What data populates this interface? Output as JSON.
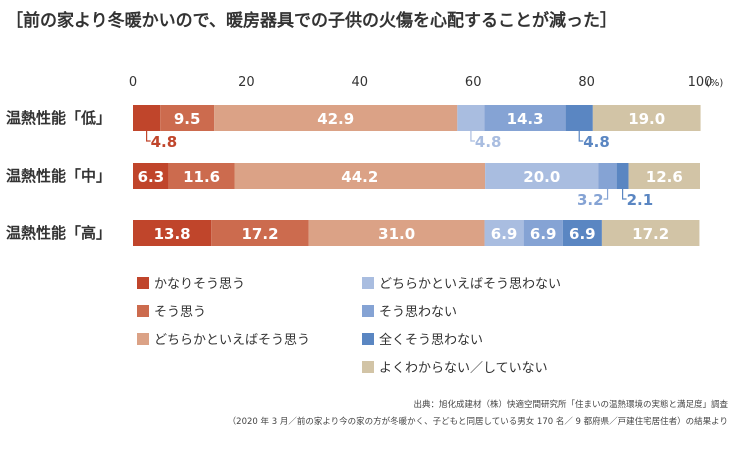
{
  "colors": {
    "strongly_agree": "#c0452b",
    "agree": "#cc6b4e",
    "somewhat_agree": "#dba286",
    "somewhat_disagree": "#a9bde0",
    "disagree": "#85a3d4",
    "strongly_disagree": "#5a86c2",
    "unknown": "#d2c4a6",
    "value_label_dark_bg": "#ffffff",
    "value_label_light_bg": "#ffffff",
    "callout_text_strongly_agree": "#c0452b",
    "callout_text_somewhat_disagree": "#a9bde0",
    "callout_text_disagree": "#85a3d4",
    "callout_text_strongly_disagree": "#5a86c2"
  },
  "chart_data": {
    "type": "bar",
    "orientation": "horizontal",
    "stacked": true,
    "title": "［前の家より冬暖かいので、暖房器具での子供の火傷を心配することが減った］",
    "xlim": [
      0,
      100
    ],
    "xticks": [
      "0",
      "20",
      "40",
      "60",
      "80",
      "100"
    ],
    "unit_label": "(%)",
    "categories": [
      "温熱性能「低」",
      "温熱性能「中」",
      "温熱性能「高」"
    ],
    "series": [
      {
        "name": "かなりそう思う",
        "color_key": "strongly_agree",
        "values": [
          4.8,
          6.3,
          13.8
        ],
        "labels": [
          "4.8",
          "6.3",
          "13.8"
        ]
      },
      {
        "name": "そう思う",
        "color_key": "agree",
        "values": [
          9.5,
          11.6,
          17.2
        ],
        "labels": [
          "9.5",
          "11.6",
          "17.2"
        ]
      },
      {
        "name": "どちらかといえばそう思う",
        "color_key": "somewhat_agree",
        "values": [
          42.9,
          44.2,
          31.0
        ],
        "labels": [
          "42.9",
          "44.2",
          "31.0"
        ]
      },
      {
        "name": "どちらかといえばそう思わない",
        "color_key": "somewhat_disagree",
        "values": [
          4.8,
          20.0,
          6.9
        ],
        "labels": [
          "4.8",
          "20.0",
          "6.9"
        ]
      },
      {
        "name": "そう思わない",
        "color_key": "disagree",
        "values": [
          14.3,
          3.2,
          6.9
        ],
        "labels": [
          "14.3",
          "3.2",
          "6.9"
        ]
      },
      {
        "name": "全くそう思わない",
        "color_key": "strongly_disagree",
        "values": [
          4.8,
          2.1,
          6.9
        ],
        "labels": [
          "4.8",
          "2.1",
          "6.9"
        ]
      },
      {
        "name": "よくわからない／していない",
        "color_key": "unknown",
        "values": [
          19.0,
          12.6,
          17.2
        ],
        "labels": [
          "19.0",
          "12.6",
          "17.2"
        ]
      }
    ],
    "callouts": [
      {
        "row": 0,
        "series": 0
      },
      {
        "row": 0,
        "series": 3
      },
      {
        "row": 0,
        "series": 5
      },
      {
        "row": 1,
        "series": 4
      },
      {
        "row": 1,
        "series": 5
      }
    ],
    "legend_placement": "bottom",
    "grid": false
  },
  "source": {
    "line1": "出典：旭化成建材（株）快適空間研究所「住まいの温熱環境の実態と満足度」調査",
    "line2": "（2020 年 3 月／前の家より今の家の方が冬暖かく、子どもと同居している男女 170 名／ 9 都府県／戸建住宅居住者）の結果より"
  }
}
